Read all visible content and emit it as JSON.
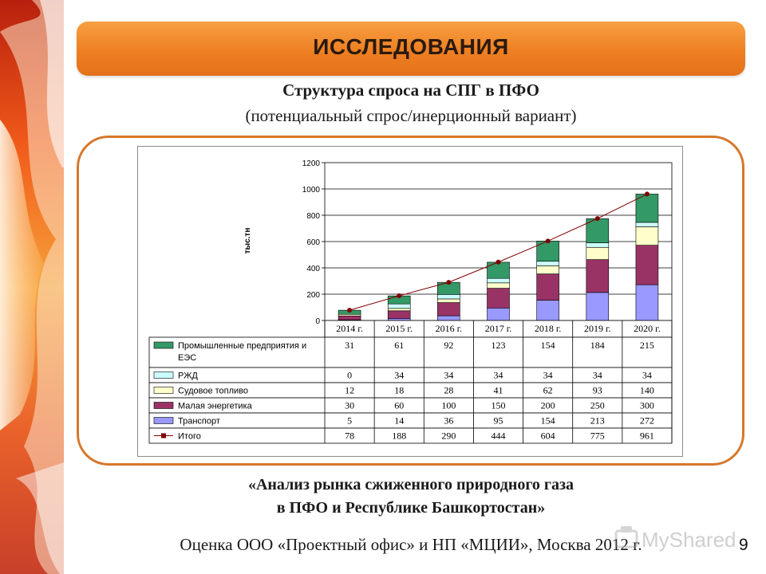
{
  "header": {
    "title": "ИССЛЕДОВАНИЯ"
  },
  "subtitle_line1": "Структура спроса на СПГ в ПФО",
  "subtitle_line2": "(потенциальный спрос/инерционный вариант)",
  "caption_line1": "«Анализ рынка сжиженного природного газа",
  "caption_line2": "в ПФО и Республике Башкортостан»",
  "source": "Оценка ООО «Проектный офис» и НП «МЦИИ», Москва 2012 г.",
  "page_number": "9",
  "watermark": {
    "text": "MyShared"
  },
  "chart_data": {
    "type": "bar",
    "stacked": true,
    "categories": [
      "2014 г.",
      "2015 г.",
      "2016 г.",
      "2017 г.",
      "2018 г.",
      "2019 г.",
      "2020 г."
    ],
    "ylabel": "тыс.тн",
    "ylim": [
      0,
      1200
    ],
    "yticks": [
      "0",
      "200",
      "400",
      "600",
      "800",
      "1000",
      "1200"
    ],
    "grid": true,
    "series": [
      {
        "name": "Транспорт",
        "values": [
          5,
          14,
          36,
          95,
          154,
          213,
          272
        ],
        "color": "#9999ff"
      },
      {
        "name": "Малая энергетика",
        "values": [
          30,
          60,
          100,
          150,
          200,
          250,
          300
        ],
        "color": "#993366"
      },
      {
        "name": "Судовое топливо",
        "values": [
          12,
          18,
          28,
          41,
          62,
          93,
          140
        ],
        "color": "#ffffcc"
      },
      {
        "name": "РЖД",
        "values": [
          0,
          34,
          34,
          34,
          34,
          34,
          34
        ],
        "color": "#ccffff"
      },
      {
        "name": "Промышленные предприятия и ЕЭС",
        "values": [
          31,
          61,
          92,
          123,
          154,
          184,
          215
        ],
        "color": "#339966"
      }
    ],
    "total": {
      "name": "Итого",
      "values": [
        78,
        188,
        290,
        444,
        604,
        775,
        961
      ],
      "color": "#800000"
    },
    "table_rows": [
      {
        "label": "Промышленные предприятия и ЕЭС",
        "values": [
          "31",
          "61",
          "92",
          "123",
          "154",
          "184",
          "215"
        ]
      },
      {
        "label": "РЖД",
        "values": [
          "0",
          "34",
          "34",
          "34",
          "34",
          "34",
          "34"
        ]
      },
      {
        "label": "Судовое топливо",
        "values": [
          "12",
          "18",
          "28",
          "41",
          "62",
          "93",
          "140"
        ]
      },
      {
        "label": "Малая энергетика",
        "values": [
          "30",
          "60",
          "100",
          "150",
          "200",
          "250",
          "300"
        ]
      },
      {
        "label": "Транспорт",
        "values": [
          "5",
          "14",
          "36",
          "95",
          "154",
          "213",
          "272"
        ]
      },
      {
        "label": "Итого",
        "values": [
          "78",
          "188",
          "290",
          "444",
          "604",
          "775",
          "961"
        ]
      }
    ]
  }
}
